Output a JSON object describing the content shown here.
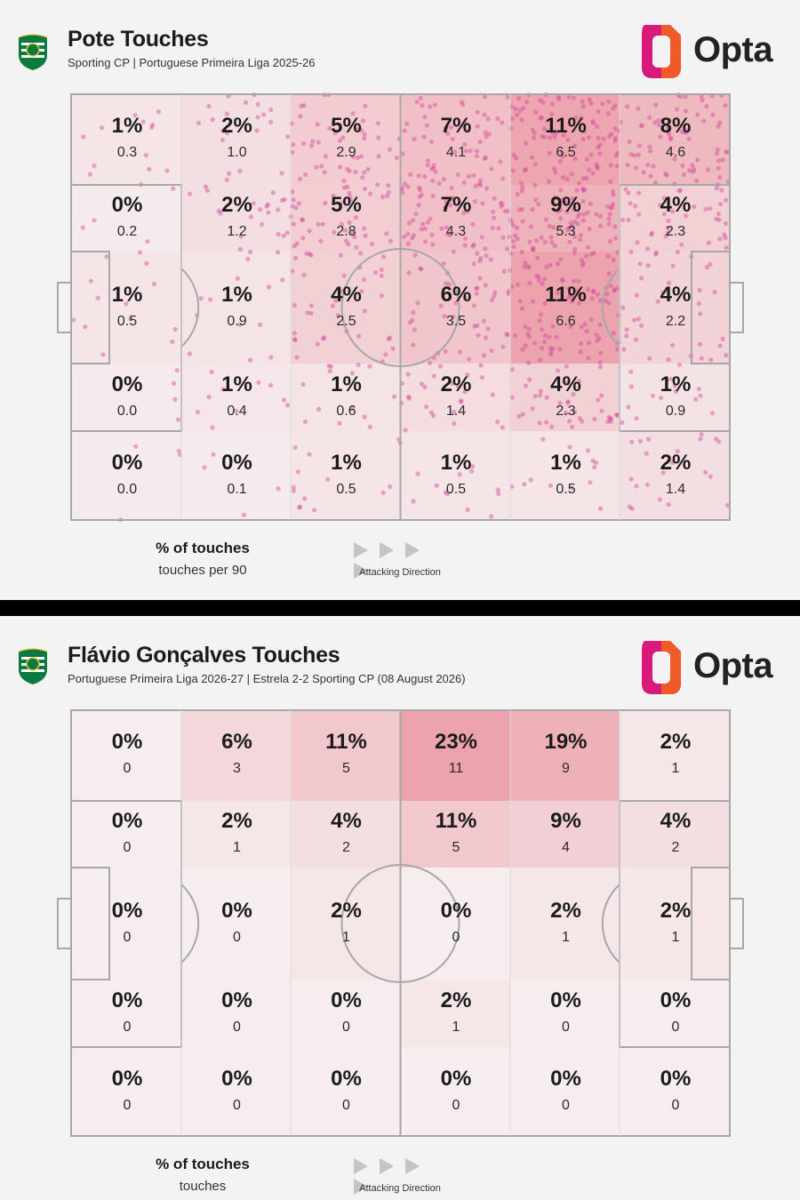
{
  "colors": {
    "heat": "#e8828f",
    "dots": "#d2479b",
    "lines": "#a7a7a7",
    "opta_pink": "#d81b7b",
    "opta_orange": "#f05a28"
  },
  "brand": {
    "logo_text": "Opta",
    "crest_icon": "sporting-crest-icon"
  },
  "legend": {
    "arrow_icon": "play-triangle-icon",
    "attack_label": "Attacking Direction"
  },
  "chart_data": [
    {
      "type": "heatmap",
      "title": "Pote Touches",
      "subtitle": "Sporting CP | Portuguese Primeira Liga 2025-26",
      "legend_pct": "% of touches",
      "legend_sub": "touches per 90",
      "grid": {
        "cols": 6,
        "rows": 5
      },
      "pct": [
        [
          "1%",
          "2%",
          "5%",
          "7%",
          "11%",
          "8%"
        ],
        [
          "0%",
          "2%",
          "5%",
          "7%",
          "9%",
          "4%"
        ],
        [
          "1%",
          "1%",
          "4%",
          "6%",
          "11%",
          "4%"
        ],
        [
          "0%",
          "1%",
          "1%",
          "2%",
          "4%",
          "1%"
        ],
        [
          "0%",
          "0%",
          "1%",
          "1%",
          "1%",
          "2%"
        ]
      ],
      "values": [
        [
          "0.3",
          "1.0",
          "2.9",
          "4.1",
          "6.5",
          "4.6"
        ],
        [
          "0.2",
          "1.2",
          "2.8",
          "4.3",
          "5.3",
          "2.3"
        ],
        [
          "0.5",
          "0.9",
          "2.5",
          "3.5",
          "6.6",
          "2.2"
        ],
        [
          "0.0",
          "0.4",
          "0.6",
          "1.4",
          "2.3",
          "0.9"
        ],
        [
          "0.0",
          "0.1",
          "0.5",
          "0.5",
          "0.5",
          "1.4"
        ]
      ],
      "intensity": [
        [
          0.09,
          0.16,
          0.38,
          0.52,
          0.82,
          0.6
        ],
        [
          0.02,
          0.16,
          0.36,
          0.52,
          0.68,
          0.32
        ],
        [
          0.09,
          0.1,
          0.32,
          0.45,
          0.85,
          0.3
        ],
        [
          0.02,
          0.07,
          0.1,
          0.2,
          0.32,
          0.12
        ],
        [
          0.02,
          0.02,
          0.09,
          0.09,
          0.09,
          0.16
        ]
      ],
      "dots": true
    },
    {
      "type": "heatmap",
      "title": "Flávio Gonçalves Touches",
      "subtitle": "Portuguese Primeira Liga 2026-27 | Estrela 2-2 Sporting CP (08 August 2026)",
      "legend_pct": "% of touches",
      "legend_sub": "touches",
      "grid": {
        "cols": 6,
        "rows": 5
      },
      "pct": [
        [
          "0%",
          "6%",
          "11%",
          "23%",
          "19%",
          "2%"
        ],
        [
          "0%",
          "2%",
          "4%",
          "11%",
          "9%",
          "4%"
        ],
        [
          "0%",
          "0%",
          "2%",
          "0%",
          "2%",
          "2%"
        ],
        [
          "0%",
          "0%",
          "0%",
          "2%",
          "0%",
          "0%"
        ],
        [
          "0%",
          "0%",
          "0%",
          "0%",
          "0%",
          "0%"
        ]
      ],
      "values": [
        [
          "0",
          "3",
          "5",
          "11",
          "9",
          "1"
        ],
        [
          "0",
          "1",
          "2",
          "5",
          "4",
          "2"
        ],
        [
          "0",
          "0",
          "1",
          "0",
          "1",
          "1"
        ],
        [
          "0",
          "0",
          "0",
          "1",
          "0",
          "0"
        ],
        [
          "0",
          "0",
          "0",
          "0",
          "0",
          "0"
        ]
      ],
      "intensity": [
        [
          0.0,
          0.26,
          0.42,
          0.85,
          0.7,
          0.08
        ],
        [
          0.0,
          0.08,
          0.16,
          0.42,
          0.34,
          0.16
        ],
        [
          0.0,
          0.0,
          0.08,
          0.0,
          0.08,
          0.08
        ],
        [
          0.0,
          0.0,
          0.0,
          0.08,
          0.0,
          0.0
        ],
        [
          0.0,
          0.0,
          0.0,
          0.0,
          0.0,
          0.0
        ]
      ],
      "dots": false
    }
  ]
}
